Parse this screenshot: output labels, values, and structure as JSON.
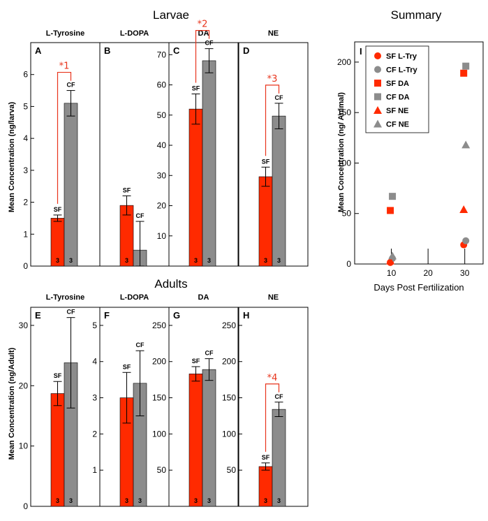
{
  "colors": {
    "sf": "#ff2a00",
    "cf": "#8c8c8c",
    "sig": "#e8341c"
  },
  "titles": {
    "larvae": "Larvae",
    "adults": "Adults",
    "summary": "Summary"
  },
  "ylabels": {
    "larvae": "Mean Concentration (ng/larva)",
    "adults": "Mean Concentration (ng/Adult)",
    "summary": "Mean Concentration (ng/ Animal)"
  },
  "chart_data": [
    {
      "id": "A",
      "row": "larvae",
      "type": "bar",
      "title": "L-Tyrosine",
      "ylim": [
        0,
        7
      ],
      "ticks": [
        0,
        1,
        2,
        3,
        4,
        5,
        6
      ],
      "categories": [
        "SF",
        "CF"
      ],
      "values": [
        1.5,
        5.1
      ],
      "errors": [
        0.1,
        0.4
      ],
      "n": [
        "3",
        "3"
      ],
      "sig": "*1"
    },
    {
      "id": "B",
      "row": "larvae",
      "type": "bar",
      "title": "L-DOPA",
      "ylim": [
        0,
        7
      ],
      "ticks": [],
      "categories": [
        "SF",
        "CF"
      ],
      "values": [
        1.9,
        0.5
      ],
      "errors": [
        0.3,
        0.9
      ],
      "n": [
        "3",
        ""
      ],
      "sig": ""
    },
    {
      "id": "C",
      "row": "larvae",
      "type": "bar",
      "title": "DA",
      "ylim": [
        0,
        74
      ],
      "ticks": [
        10,
        20,
        30,
        40,
        50,
        60,
        70
      ],
      "categories": [
        "SF",
        "CF"
      ],
      "values": [
        52,
        68
      ],
      "errors": [
        5,
        4
      ],
      "n": [
        "3",
        "3"
      ],
      "sig": "*2"
    },
    {
      "id": "D",
      "row": "larvae",
      "type": "bar",
      "title": "NE",
      "ylim": [
        0,
        7
      ],
      "ticks": [],
      "categories": [
        "SF",
        "CF"
      ],
      "values": [
        2.8,
        4.7
      ],
      "errors": [
        0.3,
        0.4
      ],
      "n": [
        "3",
        "3"
      ],
      "sig": "*3"
    },
    {
      "id": "E",
      "row": "adults",
      "type": "bar",
      "title": "L-Tyrosine",
      "ylim": [
        0,
        33
      ],
      "ticks": [
        0,
        10,
        20,
        30
      ],
      "categories": [
        "SF",
        "CF"
      ],
      "values": [
        18.7,
        23.8
      ],
      "errors": [
        2,
        7.5
      ],
      "n": [
        "3",
        "3"
      ],
      "sig": ""
    },
    {
      "id": "F",
      "row": "adults",
      "type": "bar",
      "title": "L-DOPA",
      "ylim": [
        0,
        5.5
      ],
      "ticks": [
        1,
        2,
        3,
        4,
        5
      ],
      "categories": [
        "SF",
        "CF"
      ],
      "values": [
        3.0,
        3.4
      ],
      "errors": [
        0.7,
        0.9
      ],
      "n": [
        "3",
        "3"
      ],
      "sig": ""
    },
    {
      "id": "G",
      "row": "adults",
      "type": "bar",
      "title": "DA",
      "ylim": [
        0,
        275
      ],
      "ticks": [
        50,
        100,
        150,
        200,
        250
      ],
      "categories": [
        "SF",
        "CF"
      ],
      "values": [
        183,
        189
      ],
      "errors": [
        10,
        15
      ],
      "n": [
        "3",
        "3"
      ],
      "sig": ""
    },
    {
      "id": "H",
      "row": "adults",
      "type": "bar",
      "title": "NE",
      "ylim": [
        0,
        275
      ],
      "ticks": [
        50,
        100,
        150,
        200,
        250
      ],
      "categories": [
        "SF",
        "CF"
      ],
      "values": [
        55,
        134
      ],
      "errors": [
        5,
        10
      ],
      "n": [
        "3",
        "3"
      ],
      "sig": "*4"
    },
    {
      "id": "I",
      "type": "scatter",
      "title": "Summary",
      "xlabel": "Days Post Fertilization",
      "ylabel": "Mean Concentration (ng/ Animal)",
      "xlim": [
        0,
        35
      ],
      "ylim": [
        0,
        220
      ],
      "xticks": [
        10,
        20,
        30
      ],
      "yticks": [
        0,
        50,
        100,
        150,
        200
      ],
      "series": [
        {
          "name": "SF L-Try",
          "marker": "circle",
          "color": "#ff2a00",
          "x": [
            10,
            30
          ],
          "y": [
            1.5,
            19
          ]
        },
        {
          "name": "CF L-Try",
          "marker": "circle",
          "color": "#8c8c8c",
          "x": [
            10,
            30
          ],
          "y": [
            5.5,
            23
          ]
        },
        {
          "name": "SF DA",
          "marker": "square",
          "color": "#ff2a00",
          "x": [
            10,
            30
          ],
          "y": [
            53,
            189
          ]
        },
        {
          "name": "CF DA",
          "marker": "square",
          "color": "#8c8c8c",
          "x": [
            10,
            30
          ],
          "y": [
            67,
            196
          ]
        },
        {
          "name": "SF NE",
          "marker": "triangle",
          "color": "#ff2a00",
          "x": [
            10,
            30
          ],
          "y": [
            3,
            54
          ]
        },
        {
          "name": "CF NE",
          "marker": "triangle",
          "color": "#8c8c8c",
          "x": [
            10,
            30
          ],
          "y": [
            8,
            118
          ]
        }
      ]
    }
  ]
}
